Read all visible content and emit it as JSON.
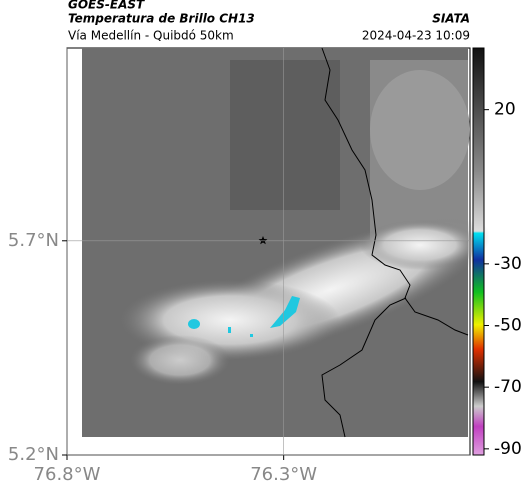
{
  "header": {
    "left_title": "GOES-EAST",
    "subtitle": "Temperatura de Brillo CH13",
    "region": "Vía Medellín - Quibdó 50km",
    "right_title": "SIATA",
    "timestamp": "2024-04-23 10:09"
  },
  "map": {
    "xlim": [
      -76.8,
      -75.87
    ],
    "ylim": [
      5.2,
      6.15
    ],
    "xticks": [
      {
        "value": -76.8,
        "label": "76.8°W"
      },
      {
        "value": -76.3,
        "label": "76.3°W"
      }
    ],
    "yticks": [
      {
        "value": 5.2,
        "label": "5.2°N"
      },
      {
        "value": 5.7,
        "label": "5.7°N"
      }
    ]
  },
  "colorbar": {
    "lim": [
      -92,
      40
    ],
    "ticks": [
      20,
      -30,
      -50,
      -70,
      -90
    ]
  }
}
